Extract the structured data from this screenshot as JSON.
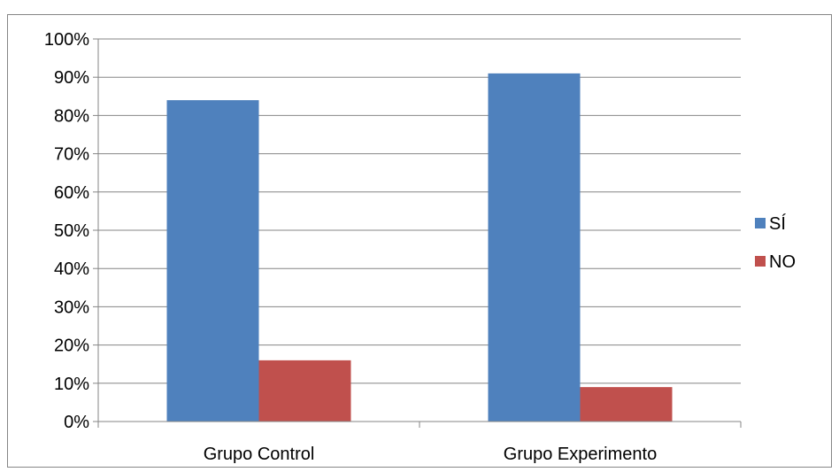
{
  "chart_data": {
    "type": "bar",
    "title": "",
    "xlabel": "",
    "ylabel": "",
    "categories": [
      "Grupo Control",
      "Grupo Experimento"
    ],
    "series": [
      {
        "name": "SÍ",
        "values": [
          0.84,
          0.91
        ],
        "color": "#4F81BD"
      },
      {
        "name": "NO",
        "values": [
          0.16,
          0.09
        ],
        "color": "#C0504D"
      }
    ],
    "ylim": [
      0,
      1
    ],
    "y_ticks": [
      "0%",
      "10%",
      "20%",
      "30%",
      "40%",
      "50%",
      "60%",
      "70%",
      "80%",
      "90%",
      "100%"
    ],
    "grid": true,
    "legend_position": "right"
  }
}
